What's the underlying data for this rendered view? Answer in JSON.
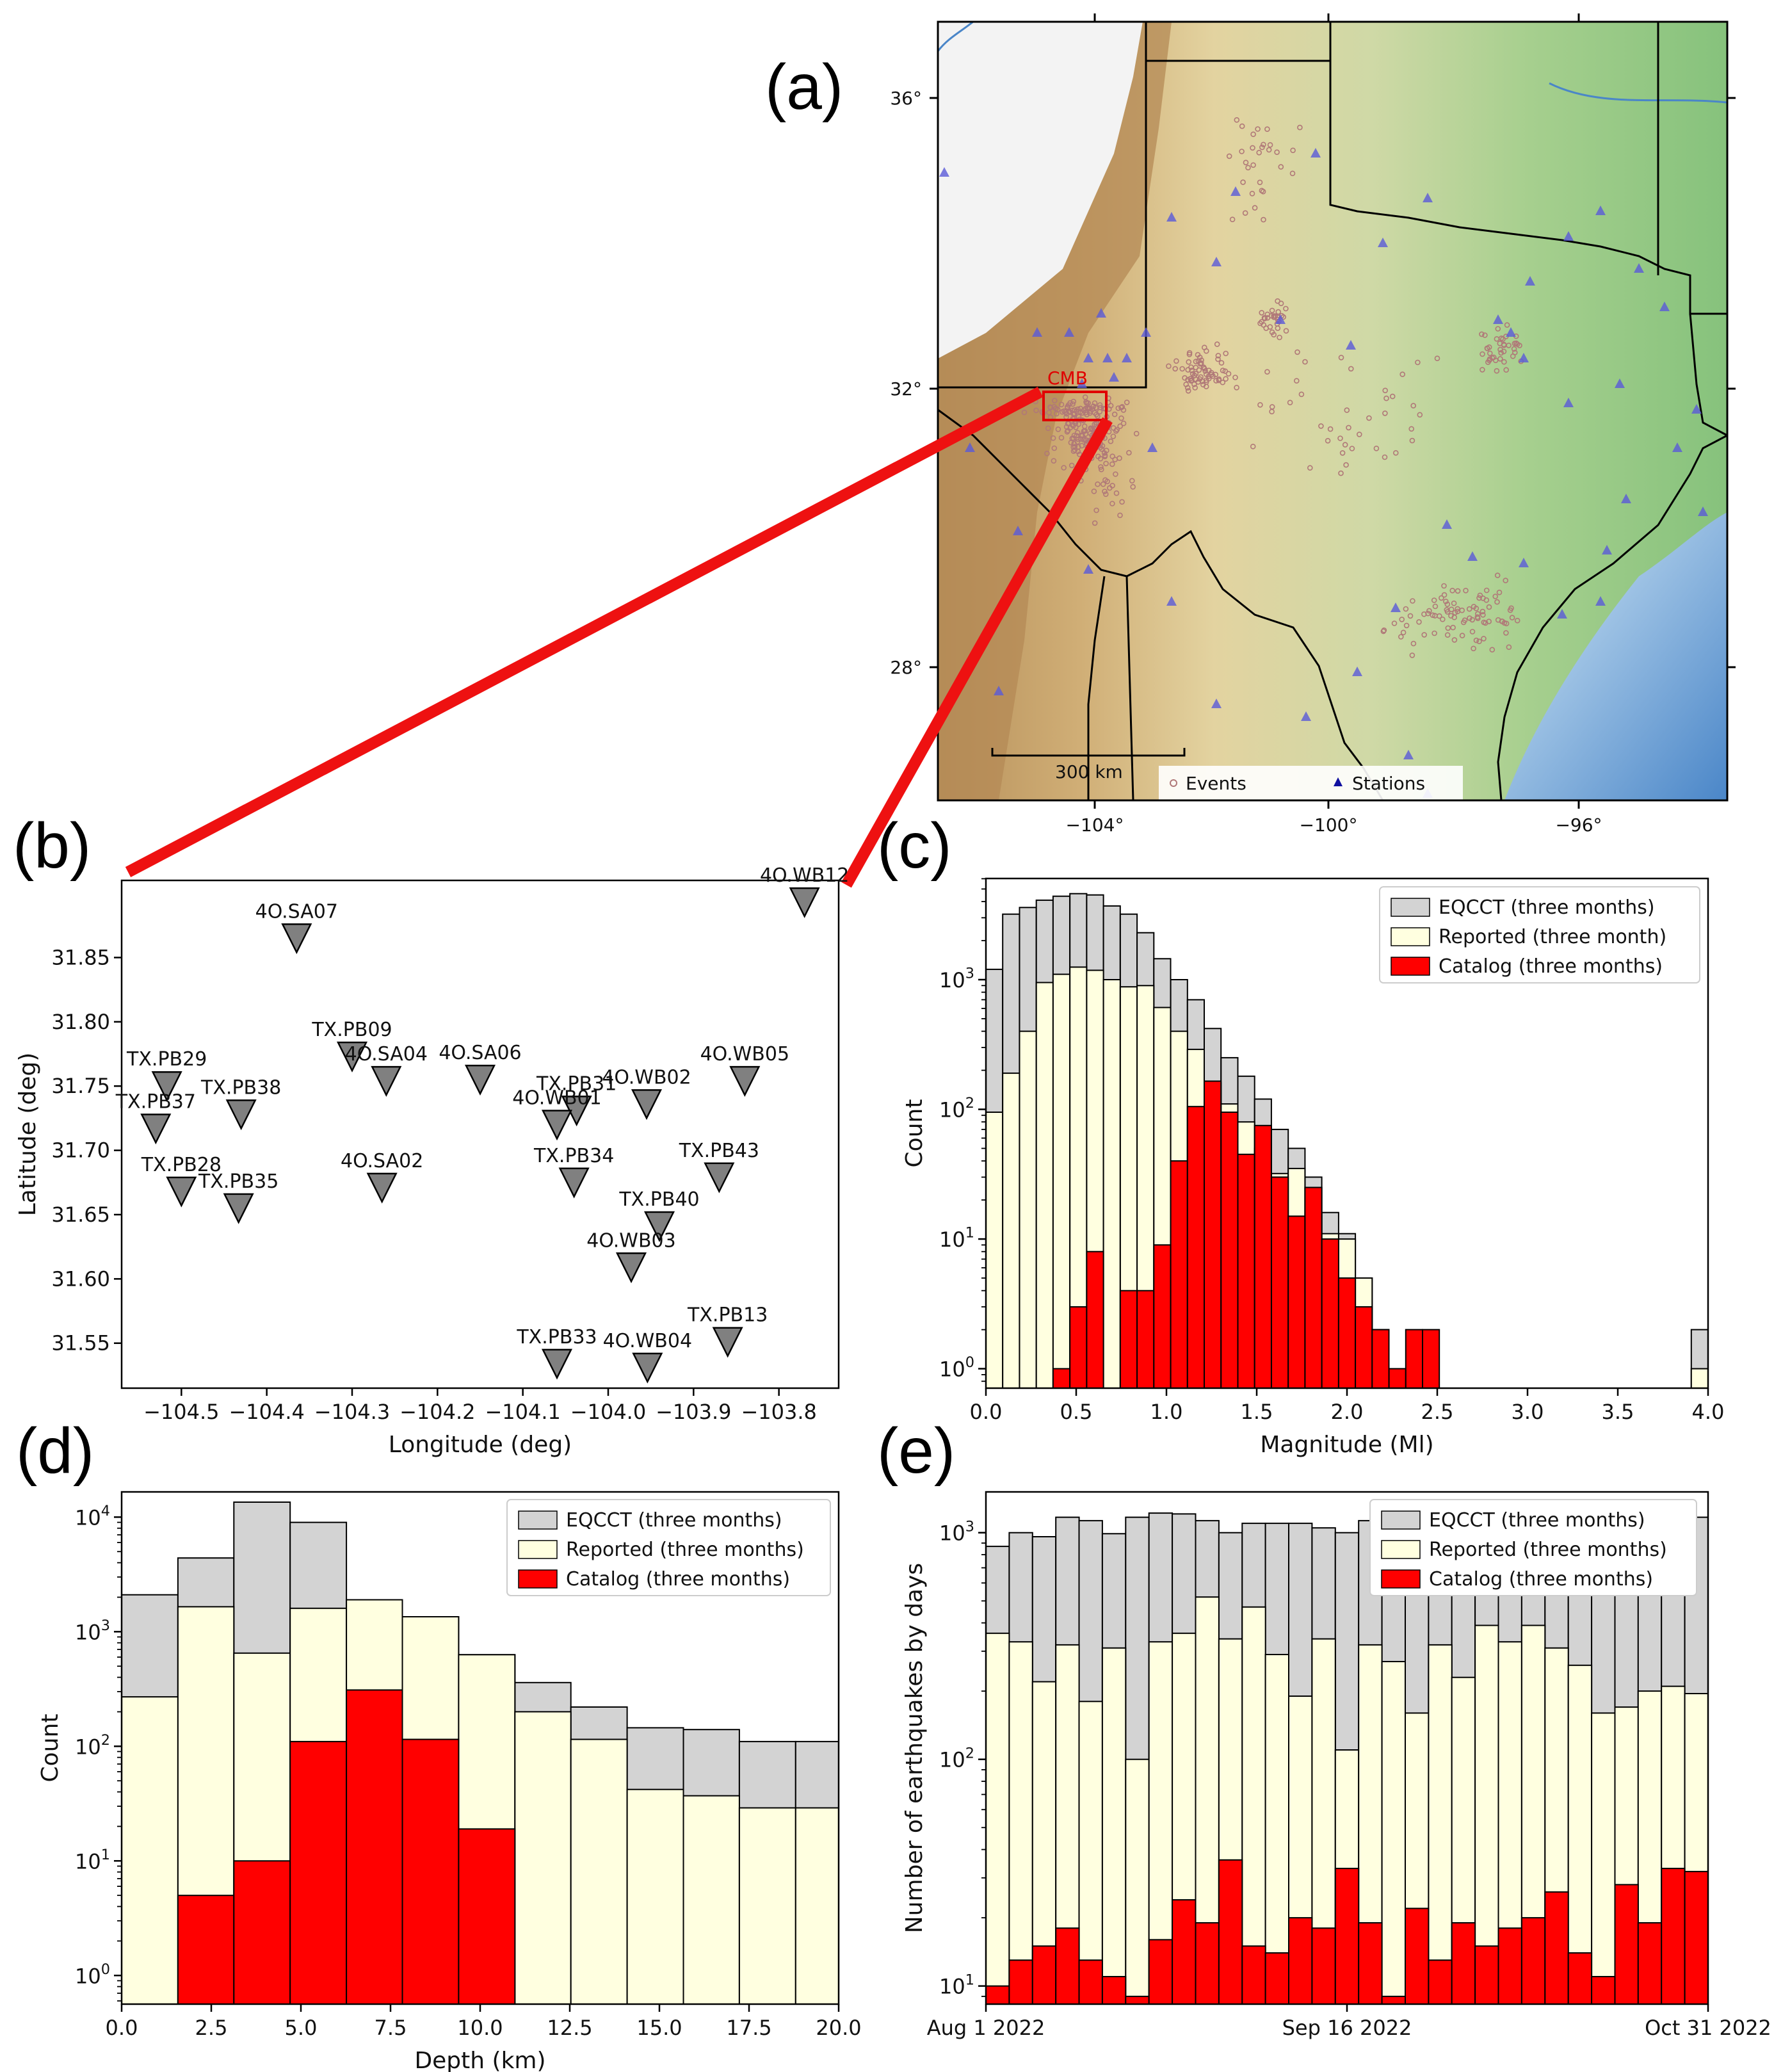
{
  "panel_labels": {
    "a": "(a)",
    "b": "(b)",
    "c": "(c)",
    "d": "(d)",
    "e": "(e)"
  },
  "colors": {
    "eqcct": "#d3d3d3",
    "reported": "#ffffe0",
    "catalog": "#ff0000",
    "station": "#808080",
    "map_station": "#5a5ad8",
    "event": "#b07878",
    "zoom_line": "#ee0000"
  },
  "map": {
    "lat_ticks": [
      "36°",
      "32°",
      "28°"
    ],
    "lon_ticks": [
      "−104°",
      "−100°",
      "−96°"
    ],
    "region_label": "CMB",
    "scalebar_label": "300 km",
    "legend": {
      "events": "Events",
      "stations": "Stations"
    }
  },
  "chart_data": [
    {
      "id": "b",
      "type": "scatter",
      "title": "",
      "xlabel": "Longitude (deg)",
      "ylabel": "Latitude (deg)",
      "xlim": [
        -104.57,
        -103.73
      ],
      "ylim": [
        31.515,
        31.91
      ],
      "xticks": [
        -104.5,
        -104.4,
        -104.3,
        -104.2,
        -104.1,
        -104.0,
        -103.9,
        -103.8
      ],
      "xtick_labels": [
        "−104.5",
        "−104.4",
        "−104.3",
        "−104.2",
        "−104.1",
        "−104.0",
        "−103.9",
        "−103.8"
      ],
      "yticks": [
        31.55,
        31.6,
        31.65,
        31.7,
        31.75,
        31.8,
        31.85
      ],
      "ytick_labels": [
        "31.55",
        "31.60",
        "31.65",
        "31.70",
        "31.75",
        "31.80",
        "31.85"
      ],
      "stations": [
        {
          "name": "4O.WB12",
          "lon": -103.77,
          "lat": 31.893
        },
        {
          "name": "4O.SA07",
          "lon": -104.365,
          "lat": 31.865
        },
        {
          "name": "TX.PB09",
          "lon": -104.3,
          "lat": 31.773
        },
        {
          "name": "4O.SA04",
          "lon": -104.26,
          "lat": 31.754
        },
        {
          "name": "4O.SA06",
          "lon": -104.15,
          "lat": 31.755
        },
        {
          "name": "TX.PB29",
          "lon": -104.517,
          "lat": 31.75
        },
        {
          "name": "TX.PB38",
          "lon": -104.43,
          "lat": 31.728
        },
        {
          "name": "TX.PB37",
          "lon": -104.53,
          "lat": 31.717
        },
        {
          "name": "TX.PB31",
          "lon": -104.037,
          "lat": 31.731
        },
        {
          "name": "4O.WB01",
          "lon": -104.06,
          "lat": 31.72
        },
        {
          "name": "4O.WB02",
          "lon": -103.955,
          "lat": 31.736
        },
        {
          "name": "4O.WB05",
          "lon": -103.84,
          "lat": 31.754
        },
        {
          "name": "TX.PB34",
          "lon": -104.04,
          "lat": 31.675
        },
        {
          "name": "TX.PB43",
          "lon": -103.87,
          "lat": 31.679
        },
        {
          "name": "TX.PB28",
          "lon": -104.5,
          "lat": 31.668
        },
        {
          "name": "TX.PB35",
          "lon": -104.433,
          "lat": 31.655
        },
        {
          "name": "4O.SA02",
          "lon": -104.265,
          "lat": 31.671
        },
        {
          "name": "TX.PB40",
          "lon": -103.94,
          "lat": 31.641
        },
        {
          "name": "4O.WB03",
          "lon": -103.973,
          "lat": 31.609
        },
        {
          "name": "TX.PB13",
          "lon": -103.86,
          "lat": 31.551
        },
        {
          "name": "TX.PB33",
          "lon": -104.06,
          "lat": 31.534
        },
        {
          "name": "4O.WB04",
          "lon": -103.954,
          "lat": 31.531
        }
      ]
    },
    {
      "id": "c",
      "type": "bar",
      "title": "",
      "xlabel": "Magnitude (Ml)",
      "ylabel": "Count",
      "xlim": [
        0.0,
        4.0
      ],
      "ylim_log10": [
        -0.15,
        3.78
      ],
      "xticks": [
        "0.0",
        "0.5",
        "1.0",
        "1.5",
        "2.0",
        "2.5",
        "3.0",
        "3.5",
        "4.0"
      ],
      "yticks": [
        "10^0",
        "10^1",
        "10^2",
        "10^3"
      ],
      "bin_width": 0.16,
      "legend": [
        "EQCCT (three months)",
        "Reported (three month)",
        "Catalog (three months)"
      ],
      "series": [
        {
          "name": "EQCCT (three months)",
          "values": [
            1200,
            3200,
            3600,
            4100,
            4400,
            4600,
            4500,
            3700,
            3200,
            2300,
            1450,
            1000,
            700,
            420,
            250,
            180,
            120,
            70,
            50,
            30,
            16,
            11,
            5,
            2,
            0,
            0,
            0,
            0,
            0,
            0,
            0,
            0,
            0,
            0,
            0,
            0,
            0,
            0,
            0,
            0,
            0,
            0,
            2
          ]
        },
        {
          "name": "Reported (three month)",
          "values": [
            95,
            190,
            400,
            950,
            1100,
            1250,
            1180,
            1000,
            880,
            900,
            610,
            400,
            290,
            160,
            110,
            80,
            50,
            32,
            35,
            25,
            11,
            10,
            5,
            2,
            0,
            0,
            0,
            0,
            0,
            0,
            0,
            0,
            0,
            0,
            0,
            0,
            0,
            0,
            0,
            0,
            0,
            0,
            1
          ]
        },
        {
          "name": "Catalog (three months)",
          "values": [
            0,
            0,
            0,
            0,
            1,
            3,
            8,
            0,
            4,
            4,
            9,
            40,
            105,
            165,
            95,
            45,
            75,
            30,
            15,
            25,
            10,
            5,
            3,
            2,
            1,
            2,
            2,
            0,
            0,
            0,
            0,
            0,
            0,
            0,
            0,
            0,
            0,
            0,
            0,
            0,
            0,
            0,
            0
          ]
        }
      ]
    },
    {
      "id": "d",
      "type": "bar",
      "title": "",
      "xlabel": "Depth (km)",
      "ylabel": "Count",
      "xlim": [
        0.0,
        20.0
      ],
      "ylim_log10": [
        -0.25,
        4.22
      ],
      "xticks": [
        "0.0",
        "2.5",
        "5.0",
        "7.5",
        "10.0",
        "12.5",
        "15.0",
        "17.5",
        "20.0"
      ],
      "yticks": [
        "10^0",
        "10^1",
        "10^2",
        "10^3",
        "10^4"
      ],
      "bin_edges": [
        0.0,
        1.57,
        3.13,
        4.7,
        6.27,
        7.83,
        9.4,
        10.97,
        12.53,
        14.1,
        15.67,
        17.23,
        18.8,
        20.0
      ],
      "legend": [
        "EQCCT (three months)",
        "Reported (three months)",
        "Catalog (three months)"
      ],
      "series": [
        {
          "name": "EQCCT (three months)",
          "values": [
            2100,
            4400,
            13500,
            9000,
            1900,
            1350,
            630,
            360,
            220,
            145,
            140,
            110,
            110
          ]
        },
        {
          "name": "Reported (three months)",
          "values": [
            270,
            1650,
            650,
            1600,
            1900,
            1350,
            630,
            200,
            115,
            42,
            37,
            29,
            29
          ]
        },
        {
          "name": "Catalog (three months)",
          "values": [
            0,
            5,
            10,
            110,
            310,
            115,
            19,
            0,
            0,
            0,
            0,
            0,
            0
          ]
        }
      ]
    },
    {
      "id": "e",
      "type": "bar",
      "title": "",
      "xlabel": "",
      "ylabel": "Number of earthquakes by days",
      "ylim_log10": [
        0.92,
        3.18
      ],
      "xtick_labels": [
        "Aug 1 2022",
        "Sep 16 2022",
        "Oct 31 2022"
      ],
      "yticks": [
        "10^1",
        "10^2",
        "10^3"
      ],
      "bin_count": 31,
      "legend": [
        "EQCCT (three months)",
        "Reported (three months)",
        "Catalog (three months)"
      ],
      "series": [
        {
          "name": "EQCCT (three months)",
          "values": [
            870,
            1000,
            960,
            1170,
            1130,
            990,
            1170,
            1220,
            1210,
            1130,
            1000,
            1100,
            1100,
            1100,
            1050,
            1000,
            1130,
            1100,
            1030,
            1010,
            1100,
            1080,
            1100,
            1120,
            1080,
            1080,
            1060,
            1100,
            1130,
            1110,
            1170
          ]
        },
        {
          "name": "Reported (three months)",
          "values": [
            360,
            330,
            220,
            320,
            180,
            310,
            100,
            330,
            360,
            520,
            340,
            470,
            290,
            190,
            340,
            110,
            320,
            270,
            160,
            320,
            230,
            390,
            330,
            390,
            310,
            260,
            160,
            170,
            200,
            210,
            195
          ]
        },
        {
          "name": "Catalog (three months)",
          "values": [
            10,
            13,
            15,
            18,
            13,
            11,
            9,
            16,
            24,
            19,
            36,
            15,
            14,
            20,
            18,
            33,
            19,
            9,
            22,
            13,
            19,
            15,
            18,
            20,
            26,
            14,
            11,
            28,
            19,
            33,
            32
          ]
        }
      ]
    }
  ]
}
